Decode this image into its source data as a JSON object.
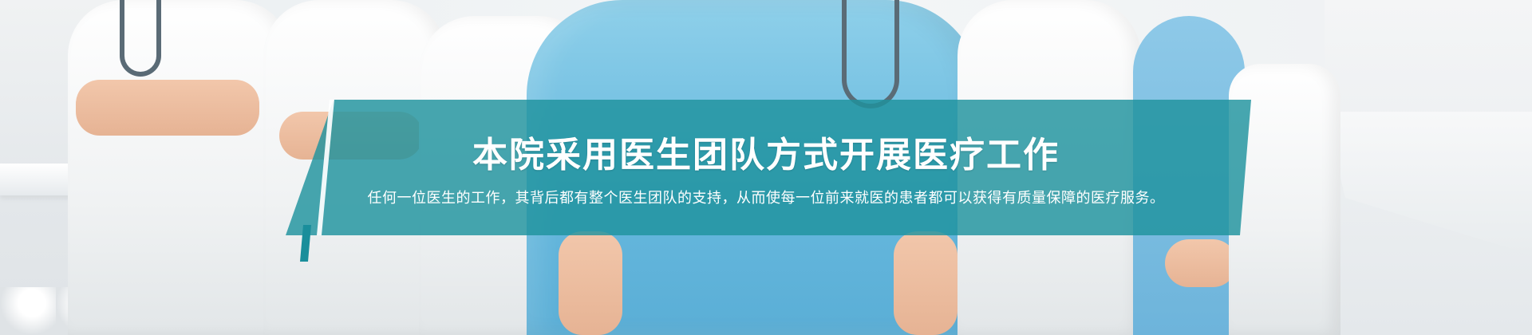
{
  "banner": {
    "headline": "本院采用医生团队方式开展医疗工作",
    "subline": "任何一位医生的工作，其背后都有整个医生团队的支持，从而使每一位前来就医的患者都可以获得有质量保障的医疗服务。",
    "overlay_color": "#1f929e",
    "text_color": "#ffffff",
    "scrub_color": "#67b9de"
  }
}
